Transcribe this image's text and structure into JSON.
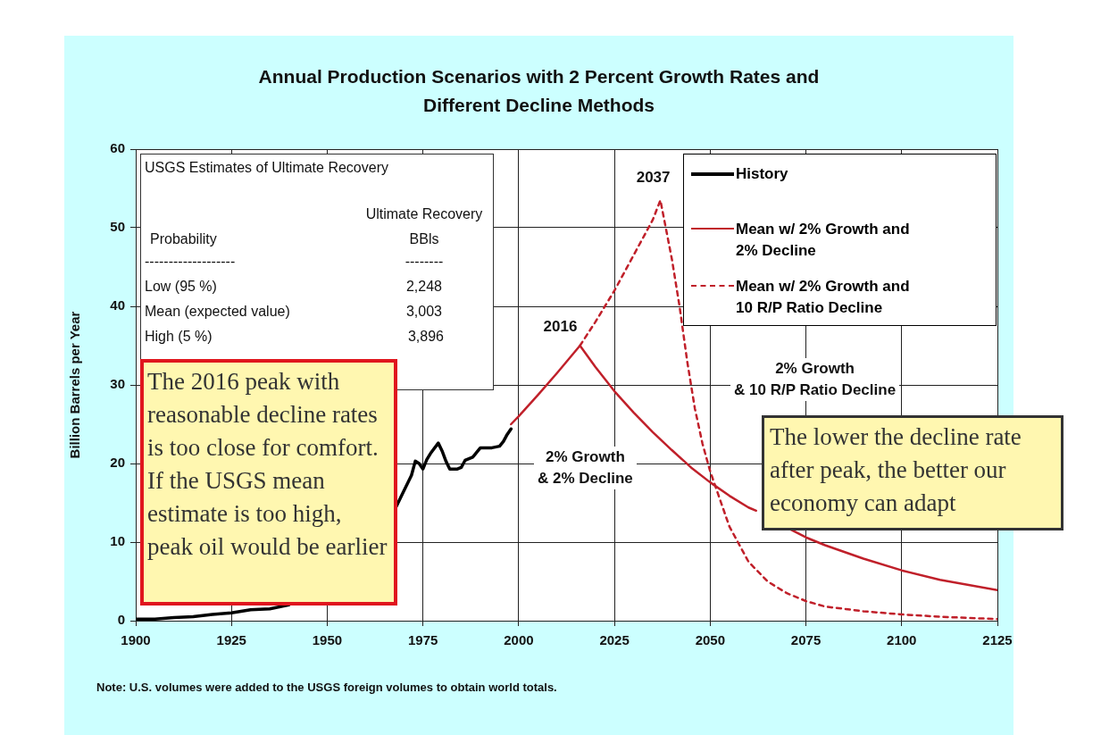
{
  "chart_data": {
    "type": "line",
    "title": "Annual Production Scenarios with 2 Percent Growth Rates and\nDifferent Decline Methods",
    "ylabel": "Billion Barrels per Year",
    "xlim": [
      1900,
      2125
    ],
    "xticks": [
      1900,
      1925,
      1950,
      1975,
      2000,
      2025,
      2050,
      2075,
      2100,
      2125
    ],
    "ylim": [
      0,
      60
    ],
    "yticks": [
      0,
      10,
      20,
      30,
      40,
      50,
      60
    ],
    "grid": true,
    "legend": "top right",
    "marker": "none",
    "series": [
      {
        "name": "History",
        "color": "#000000",
        "line_style": "solid",
        "x": [
          1900,
          1905,
          1910,
          1915,
          1920,
          1925,
          1930,
          1935,
          1940,
          1944,
          1956,
          1968,
          1970,
          1972,
          1973,
          1974,
          1975,
          1976,
          1977,
          1979,
          1980,
          1981,
          1982,
          1984,
          1985,
          1986,
          1988,
          1989,
          1990,
          1993,
          1995,
          1996,
          1997,
          1998
        ],
        "values": [
          0.2,
          0.2,
          0.4,
          0.5,
          0.8,
          1.0,
          1.4,
          1.5,
          2.0,
          null,
          null,
          14.5,
          16.5,
          18.5,
          20.3,
          20.0,
          19.3,
          20.5,
          21.3,
          22.6,
          21.6,
          20.3,
          19.3,
          19.3,
          19.5,
          20.4,
          20.8,
          21.4,
          22.0,
          22.0,
          22.2,
          22.8,
          23.7,
          24.4
        ]
      },
      {
        "name": "Mean w/ 2% Growth and\n2% Decline",
        "color": "#c0202a",
        "line_style": "solid",
        "x": [
          1998,
          2000,
          2005,
          2010,
          2016,
          2020,
          2025,
          2030,
          2035,
          2040,
          2045,
          2050,
          2055,
          2060,
          2062,
          2066,
          2071,
          2075,
          2080,
          2090,
          2100,
          2110,
          2125
        ],
        "values": [
          25,
          26,
          28.7,
          31.5,
          35,
          32.3,
          29.2,
          26.5,
          24,
          21.7,
          19.5,
          17.6,
          15.9,
          14.4,
          14.0,
          null,
          11.6,
          10.6,
          9.6,
          7.9,
          6.4,
          5.2,
          3.9
        ]
      },
      {
        "name": "Mean w/ 2% Growth and\n10 R/P Ratio Decline",
        "color": "#c0202a",
        "line_style": "dashed",
        "x": [
          2016,
          2020,
          2025,
          2030,
          2035,
          2037,
          2040,
          2042,
          2044,
          2046,
          2048,
          2050,
          2055,
          2060,
          2065,
          2070,
          2075,
          2080,
          2090,
          2100,
          2110,
          2125
        ],
        "values": [
          35,
          38,
          42,
          46.5,
          51,
          53.5,
          46,
          40,
          33,
          27,
          22.5,
          19,
          12,
          7.5,
          5,
          3.5,
          2.5,
          1.8,
          1.2,
          0.8,
          0.5,
          0.2
        ]
      }
    ],
    "annotations": [
      {
        "text": "2016",
        "x": 2016,
        "y": 35
      },
      {
        "text": "2037",
        "x": 2037,
        "y": 53.5
      },
      "2% Growth\n& 2% Decline",
      "2% Growth\n& 10 R/P Ratio Decline",
      "USGS Estimates of Ultimate Recovery",
      "Ultimate Recovery",
      "Probability",
      "BBls",
      "-------------------",
      "--------",
      "Low (95 %)",
      "2,248",
      "Mean (expected value)",
      "3,003",
      "High (5 %)",
      "3,896",
      "The 2016  peak with reasonable decline rates is too close for comfort. If the USGS mean estimate is too high, peak oil would be earlier",
      "The lower the decline rate after peak, the better our economy can adapt",
      "Note:  U.S. volumes were added to the USGS foreign volumes to obtain world totals."
    ]
  }
}
